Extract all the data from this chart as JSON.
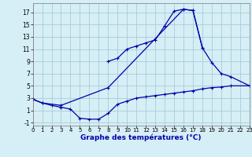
{
  "xlabel": "Graphe des températures (°C)",
  "background_color": "#d6eef5",
  "grid_color": "#a8ccd8",
  "line_color": "#0000aa",
  "xlim": [
    0,
    23
  ],
  "ylim": [
    -1.5,
    18.5
  ],
  "xticks": [
    0,
    1,
    2,
    3,
    4,
    5,
    6,
    7,
    8,
    9,
    10,
    11,
    12,
    13,
    14,
    15,
    16,
    17,
    18,
    19,
    20,
    21,
    22,
    23
  ],
  "yticks": [
    -1,
    1,
    3,
    5,
    7,
    9,
    11,
    13,
    15,
    17
  ],
  "upper_x": [
    8,
    9,
    10,
    11,
    12,
    13,
    14,
    15,
    16,
    17,
    18
  ],
  "upper_y": [
    9.0,
    9.5,
    11.0,
    11.5,
    12.0,
    12.5,
    14.8,
    17.2,
    17.5,
    17.3,
    11.2
  ],
  "outer_x": [
    0,
    1,
    3,
    8,
    16,
    17,
    18,
    19,
    20,
    21,
    23
  ],
  "outer_y": [
    2.8,
    2.2,
    1.8,
    4.7,
    17.5,
    17.3,
    11.2,
    8.8,
    7.0,
    6.5,
    5.0
  ],
  "lower_x": [
    0,
    1,
    2,
    3,
    4,
    5,
    6,
    7,
    8,
    9,
    10,
    11,
    12,
    13,
    14,
    15,
    16,
    17,
    18,
    19,
    20,
    21,
    23
  ],
  "lower_y": [
    2.8,
    2.2,
    1.8,
    1.5,
    1.2,
    -0.3,
    -0.45,
    -0.45,
    0.5,
    2.0,
    2.5,
    3.0,
    3.2,
    3.4,
    3.6,
    3.8,
    4.0,
    4.2,
    4.5,
    4.7,
    4.8,
    5.0,
    5.0
  ]
}
